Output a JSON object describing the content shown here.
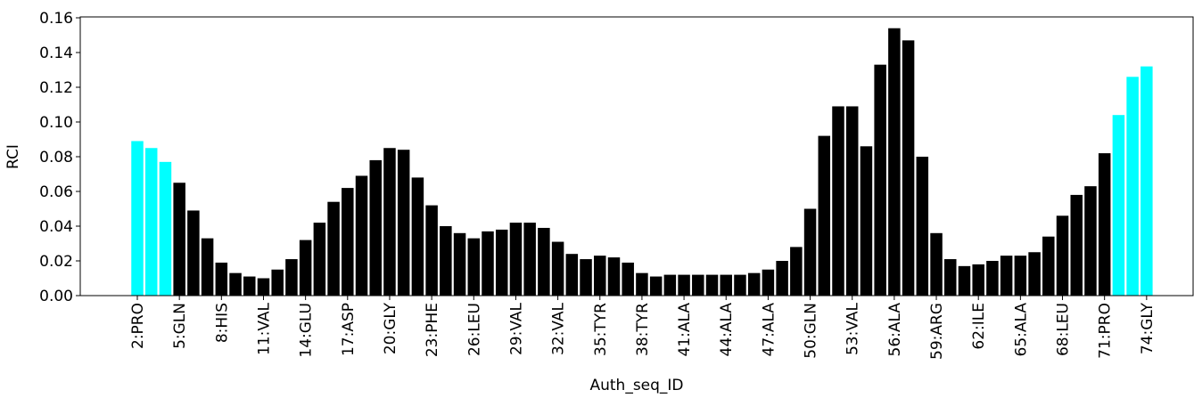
{
  "chart_data": {
    "type": "bar",
    "x_label": "Auth_seq_ID",
    "y_label": "RCI",
    "categories": [
      "2:PRO",
      null,
      null,
      "5:GLN",
      null,
      null,
      "8:HIS",
      null,
      null,
      "11:VAL",
      null,
      null,
      "14:GLU",
      null,
      null,
      "17:ASP",
      null,
      null,
      "20:GLY",
      null,
      null,
      "23:PHE",
      null,
      null,
      "26:LEU",
      null,
      null,
      "29:VAL",
      null,
      null,
      "32:VAL",
      null,
      null,
      "35:TYR",
      null,
      null,
      "38:TYR",
      null,
      null,
      "41:ALA",
      null,
      null,
      "44:ALA",
      null,
      null,
      "47:ALA",
      null,
      null,
      "50:GLN",
      null,
      null,
      "53:VAL",
      null,
      null,
      "56:ALA",
      null,
      null,
      "59:ARG",
      null,
      null,
      "62:ILE",
      null,
      null,
      "65:ALA",
      null,
      null,
      "68:LEU",
      null,
      null,
      "71:PRO",
      null,
      null,
      "74:GLY"
    ],
    "values": [
      0.089,
      0.085,
      0.077,
      0.065,
      0.049,
      0.033,
      0.019,
      0.013,
      0.011,
      0.01,
      0.015,
      0.021,
      0.032,
      0.042,
      0.054,
      0.062,
      0.069,
      0.078,
      0.085,
      0.084,
      0.068,
      0.052,
      0.04,
      0.036,
      0.033,
      0.037,
      0.038,
      0.042,
      0.042,
      0.039,
      0.031,
      0.024,
      0.021,
      0.023,
      0.022,
      0.019,
      0.013,
      0.011,
      0.012,
      0.012,
      0.012,
      0.012,
      0.012,
      0.012,
      0.013,
      0.015,
      0.02,
      0.028,
      0.05,
      0.092,
      0.109,
      0.109,
      0.086,
      0.133,
      0.154,
      0.147,
      0.08,
      0.036,
      0.021,
      0.017,
      0.018,
      0.02,
      0.023,
      0.023,
      0.025,
      0.034,
      0.046,
      0.058,
      0.063,
      0.082,
      0.104,
      0.126,
      0.132
    ],
    "colors": [
      "#00ffff",
      "#00ffff",
      "#00ffff",
      "#000000",
      "#000000",
      "#000000",
      "#000000",
      "#000000",
      "#000000",
      "#000000",
      "#000000",
      "#000000",
      "#000000",
      "#000000",
      "#000000",
      "#000000",
      "#000000",
      "#000000",
      "#000000",
      "#000000",
      "#000000",
      "#000000",
      "#000000",
      "#000000",
      "#000000",
      "#000000",
      "#000000",
      "#000000",
      "#000000",
      "#000000",
      "#000000",
      "#000000",
      "#000000",
      "#000000",
      "#000000",
      "#000000",
      "#000000",
      "#000000",
      "#000000",
      "#000000",
      "#000000",
      "#000000",
      "#000000",
      "#000000",
      "#000000",
      "#000000",
      "#000000",
      "#000000",
      "#000000",
      "#000000",
      "#000000",
      "#000000",
      "#000000",
      "#000000",
      "#000000",
      "#000000",
      "#000000",
      "#000000",
      "#000000",
      "#000000",
      "#000000",
      "#000000",
      "#000000",
      "#000000",
      "#000000",
      "#000000",
      "#000000",
      "#000000",
      "#000000",
      "#000000",
      "#00ffff",
      "#00ffff",
      "#00ffff"
    ],
    "ylim": [
      0,
      0.16
    ],
    "yticks": [
      {
        "value": 0,
        "label": "0.00"
      },
      {
        "value": 0.02,
        "label": "0.02"
      },
      {
        "value": 0.04,
        "label": "0.04"
      },
      {
        "value": 0.06,
        "label": "0.06"
      },
      {
        "value": 0.08,
        "label": "0.08"
      },
      {
        "value": 0.1,
        "label": "0.10"
      },
      {
        "value": 0.12,
        "label": "0.12"
      },
      {
        "value": 0.14,
        "label": "0.14"
      },
      {
        "value": 0.16,
        "label": "0.16"
      }
    ]
  }
}
